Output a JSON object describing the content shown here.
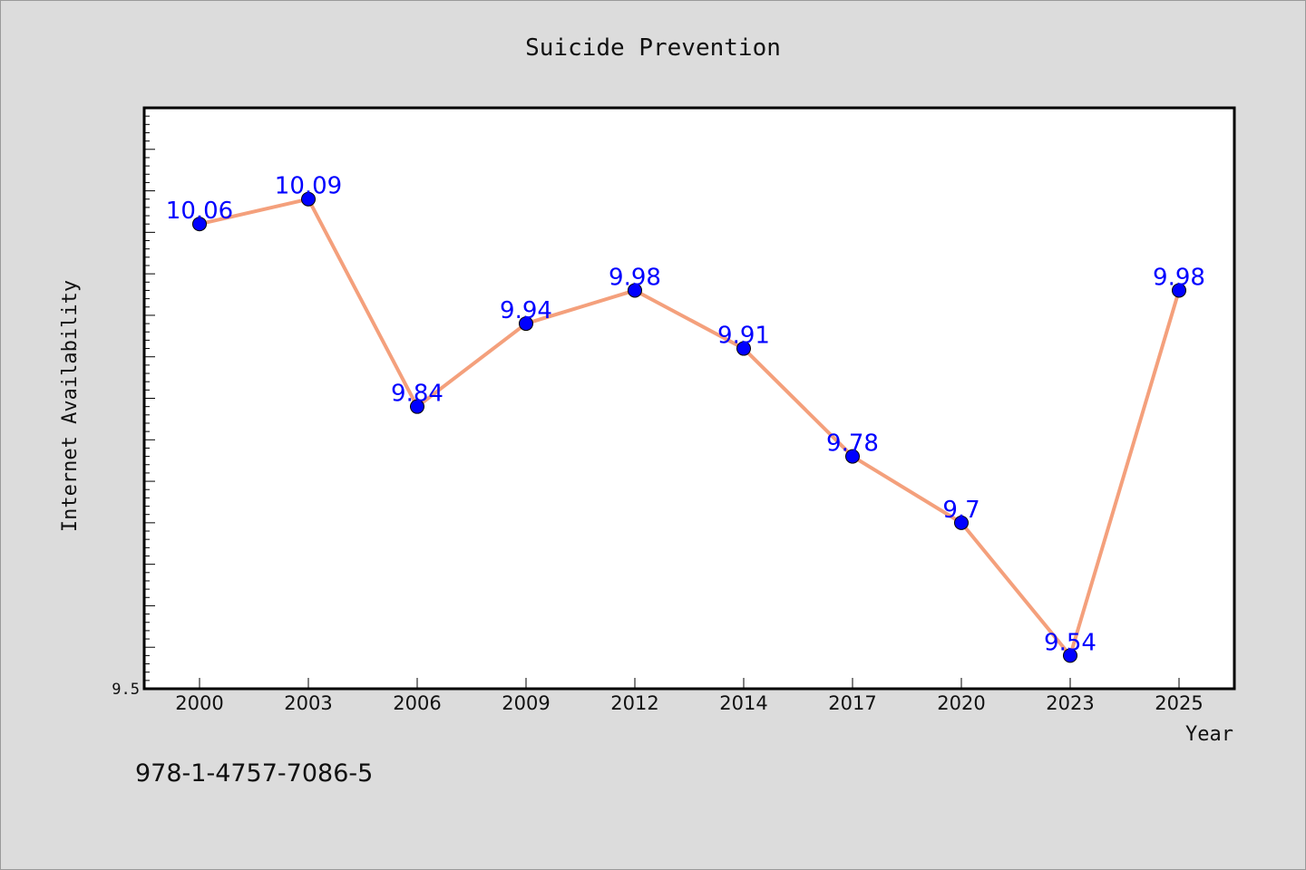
{
  "chart_data": {
    "type": "line",
    "title": "Suicide Prevention",
    "xlabel": "Year",
    "ylabel": "Internet Availability",
    "categories": [
      "2000",
      "2003",
      "2006",
      "2009",
      "2012",
      "2014",
      "2017",
      "2020",
      "2023",
      "2025"
    ],
    "series": [
      {
        "values": [
          10.06,
          10.09,
          9.84,
          9.94,
          9.98,
          9.91,
          9.78,
          9.7,
          9.54,
          9.98
        ],
        "labels": [
          "10.06",
          "10.09",
          "9.84",
          "9.94",
          "9.98",
          "9.91",
          "9.78",
          "9.7",
          "9.54",
          "9.98"
        ]
      }
    ],
    "ylim": [
      9.5,
      10.2
    ],
    "yticks_labeled": [
      "9.5"
    ],
    "grid": false,
    "line_color": "#f4a07c",
    "marker_color": "#0000ff",
    "label_color": "#0000ff",
    "background_color": "#dcdcdc",
    "plot_background_color": "#ffffff"
  },
  "footer": {
    "isbn": "978-1-4757-7086-5"
  }
}
